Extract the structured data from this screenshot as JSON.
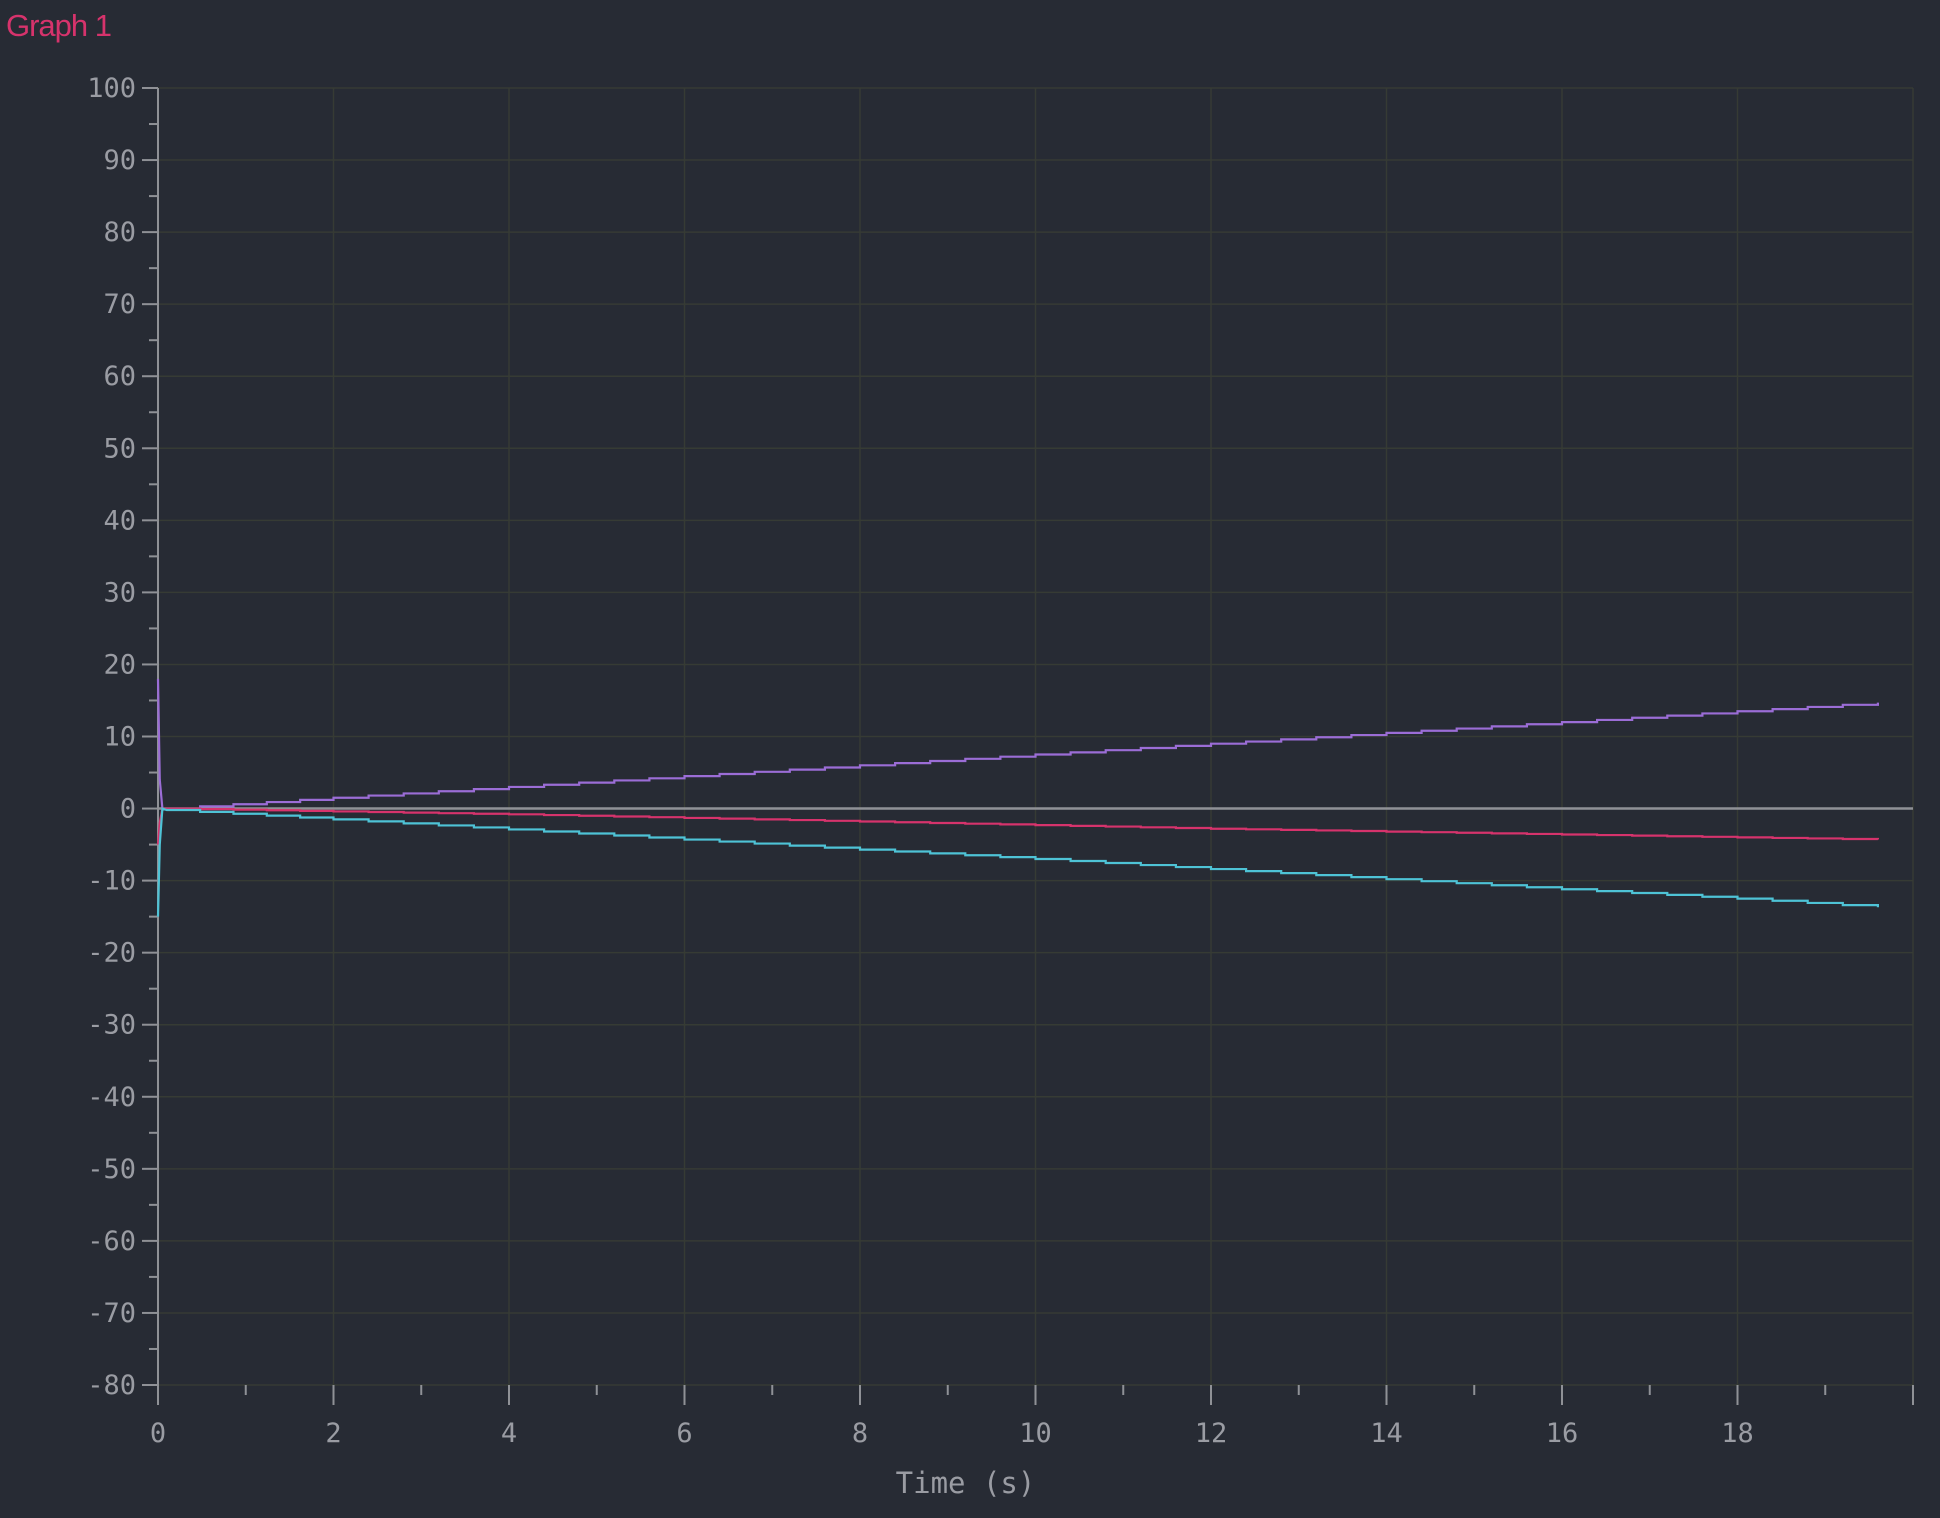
{
  "title": "Graph 1",
  "chart_data": {
    "type": "line",
    "xlabel": "Time (s)",
    "ylabel": "",
    "xlim": [
      0,
      20
    ],
    "ylim": [
      -80,
      100
    ],
    "x_ticks": [
      0,
      2,
      4,
      6,
      8,
      10,
      12,
      14,
      16,
      18
    ],
    "y_ticks": [
      100,
      90,
      80,
      70,
      60,
      50,
      40,
      30,
      20,
      10,
      0,
      -10,
      -20,
      -30,
      -40,
      -50,
      -60,
      -70,
      -80
    ],
    "grid": true,
    "series": [
      {
        "color": "#9b6dd6",
        "x": [
          0,
          0.02,
          0.05,
          0.1,
          2,
          4,
          6,
          8,
          10,
          12,
          14,
          16,
          18,
          19.6
        ],
        "y": [
          18,
          4,
          0,
          0,
          1.5,
          3,
          4.5,
          6,
          7.5,
          9,
          10.5,
          12,
          13.5,
          14.7
        ]
      },
      {
        "color": "#d6336c",
        "x": [
          0,
          0.02,
          0.05,
          0.1,
          2,
          4,
          6,
          8,
          10,
          12,
          14,
          16,
          18,
          19.6
        ],
        "y": [
          -5,
          -2,
          0,
          0,
          -0.4,
          -0.8,
          -1.3,
          -1.8,
          -2.3,
          -2.8,
          -3.2,
          -3.6,
          -4,
          -4.3
        ]
      },
      {
        "color": "#4ec3d6",
        "x": [
          0,
          0.02,
          0.05,
          0.1,
          2,
          4,
          6,
          8,
          10,
          12,
          14,
          16,
          18,
          19.6
        ],
        "y": [
          -15,
          -5,
          0,
          -0.2,
          -1.5,
          -2.9,
          -4.3,
          -5.7,
          -7,
          -8.4,
          -9.8,
          -11.2,
          -12.5,
          -13.7
        ]
      }
    ]
  }
}
